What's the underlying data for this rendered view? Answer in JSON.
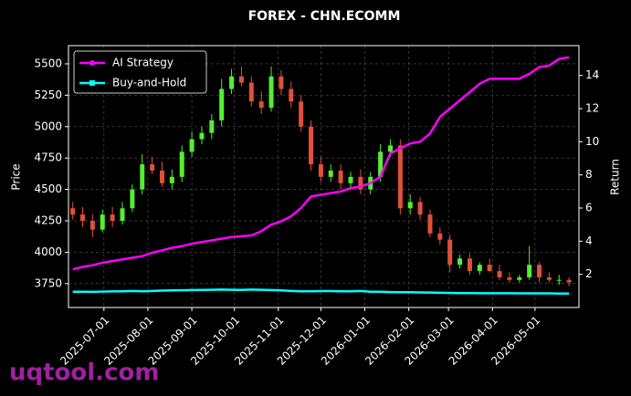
{
  "chart_data": {
    "type": "candlestick",
    "title": "FOREX - CHN.ECOMM",
    "y_label": "Price",
    "y2_label": "Return",
    "watermark": "uqtool.com",
    "x": [
      "2025-06-09",
      "2025-06-16",
      "2025-06-23",
      "2025-06-30",
      "2025-07-07",
      "2025-07-14",
      "2025-07-21",
      "2025-07-28",
      "2025-08-04",
      "2025-08-11",
      "2025-08-18",
      "2025-08-25",
      "2025-09-01",
      "2025-09-08",
      "2025-09-15",
      "2025-09-22",
      "2025-09-29",
      "2025-10-06",
      "2025-10-13",
      "2025-10-20",
      "2025-10-27",
      "2025-11-03",
      "2025-11-10",
      "2025-11-17",
      "2025-11-24",
      "2025-12-01",
      "2025-12-08",
      "2025-12-15",
      "2025-12-22",
      "2025-12-29",
      "2026-01-05",
      "2026-01-12",
      "2026-01-19",
      "2026-01-26",
      "2026-02-02",
      "2026-02-09",
      "2026-02-16",
      "2026-02-23",
      "2026-03-02",
      "2026-03-09",
      "2026-03-16",
      "2026-03-23",
      "2026-03-30",
      "2026-04-06",
      "2026-04-13",
      "2026-04-20",
      "2026-04-27",
      "2026-05-04",
      "2026-05-11",
      "2026-05-18",
      "2026-05-25"
    ],
    "open": [
      4350,
      4300,
      4250,
      4180,
      4300,
      4250,
      4350,
      4500,
      4700,
      4650,
      4550,
      4600,
      4800,
      4900,
      4950,
      5050,
      5300,
      5400,
      5350,
      5200,
      5150,
      5400,
      5300,
      5200,
      5000,
      4700,
      4600,
      4650,
      4550,
      4600,
      4500,
      4600,
      4800,
      4850,
      4350,
      4400,
      4300,
      4150,
      4100,
      3900,
      3950,
      3850,
      3900,
      3850,
      3800,
      3780,
      3800,
      3900,
      3800,
      3780,
      3780
    ],
    "high": [
      4400,
      4360,
      4300,
      4340,
      4360,
      4400,
      4540,
      4780,
      4760,
      4720,
      4660,
      4850,
      4960,
      5000,
      5100,
      5380,
      5460,
      5480,
      5400,
      5280,
      5480,
      5450,
      5360,
      5250,
      5050,
      4760,
      4700,
      4700,
      4640,
      4660,
      4640,
      4860,
      4900,
      4900,
      4460,
      4440,
      4340,
      4200,
      4140,
      3980,
      3990,
      3920,
      3950,
      3900,
      3840,
      3820,
      4050,
      3920,
      3840,
      3820,
      3800
    ],
    "low": [
      4260,
      4200,
      4120,
      4160,
      4200,
      4220,
      4320,
      4460,
      4620,
      4520,
      4500,
      4560,
      4760,
      4860,
      4900,
      5000,
      5260,
      5320,
      5160,
      5100,
      5120,
      5250,
      5150,
      4960,
      4650,
      4560,
      4560,
      4500,
      4500,
      4460,
      4460,
      4560,
      4760,
      4300,
      4300,
      4260,
      4120,
      4060,
      3840,
      3870,
      3820,
      3820,
      3840,
      3780,
      3760,
      3760,
      3780,
      3760,
      3760,
      3740,
      3730
    ],
    "close": [
      4300,
      4250,
      4180,
      4300,
      4250,
      4350,
      4500,
      4700,
      4650,
      4550,
      4600,
      4800,
      4900,
      4950,
      5050,
      5300,
      5400,
      5350,
      5200,
      5150,
      5400,
      5300,
      5200,
      5000,
      4700,
      4600,
      4650,
      4550,
      4600,
      4500,
      4600,
      4800,
      4850,
      4350,
      4400,
      4300,
      4150,
      4100,
      3900,
      3950,
      3850,
      3900,
      3850,
      3800,
      3780,
      3800,
      3900,
      3800,
      3780,
      3780,
      3760
    ],
    "up_color": "#55ee33",
    "down_color": "#e0503c",
    "series": [
      {
        "name": "AI Strategy",
        "color": "#ff00ff",
        "axis": "y2",
        "values": [
          2.3,
          2.45,
          2.55,
          2.7,
          2.8,
          2.9,
          3.0,
          3.1,
          3.3,
          3.45,
          3.6,
          3.7,
          3.85,
          3.95,
          4.05,
          4.15,
          4.25,
          4.3,
          4.35,
          4.6,
          5.0,
          5.2,
          5.5,
          6.0,
          6.7,
          6.8,
          6.9,
          7.0,
          7.2,
          7.3,
          7.5,
          7.9,
          9.3,
          9.6,
          9.9,
          10.0,
          10.5,
          11.5,
          12.0,
          12.5,
          13.0,
          13.5,
          13.8,
          13.8,
          13.8,
          13.8,
          14.1,
          14.5,
          14.6,
          15.0,
          15.1
        ]
      },
      {
        "name": "Buy-and-Hold",
        "color": "#00ffff",
        "axis": "y2",
        "values": [
          0.95,
          0.95,
          0.94,
          0.96,
          0.97,
          0.98,
          1.0,
          0.98,
          1.0,
          1.02,
          1.03,
          1.04,
          1.05,
          1.06,
          1.07,
          1.08,
          1.07,
          1.06,
          1.08,
          1.07,
          1.05,
          1.03,
          1.0,
          0.98,
          0.98,
          0.99,
          0.99,
          0.98,
          0.98,
          1.0,
          0.95,
          0.95,
          0.93,
          0.92,
          0.92,
          0.91,
          0.9,
          0.89,
          0.88,
          0.87,
          0.87,
          0.86,
          0.86,
          0.86,
          0.86,
          0.85,
          0.85,
          0.85,
          0.85,
          0.84,
          0.84
        ]
      }
    ],
    "xlim": [
      "2025-06-06",
      "2026-06-01"
    ],
    "xticks": [
      "2025-07-01",
      "2025-08-01",
      "2025-09-01",
      "2025-10-01",
      "2025-11-01",
      "2025-12-01",
      "2026-01-01",
      "2026-02-01",
      "2026-03-01",
      "2026-04-01",
      "2026-05-01"
    ],
    "ylim": [
      3560,
      5645
    ],
    "yticks": [
      3750,
      4000,
      4250,
      4500,
      4750,
      5000,
      5250,
      5500
    ],
    "y2lim": [
      0,
      15.8
    ],
    "y2ticks": [
      2,
      4,
      6,
      8,
      10,
      12,
      14
    ],
    "grid": true,
    "legend": "upper left"
  }
}
